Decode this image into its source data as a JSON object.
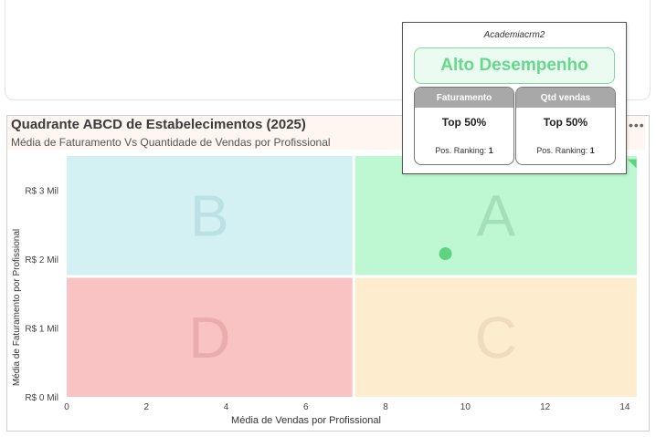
{
  "header": {
    "title": "Quadrante ABCD de Estabelecimentos (2025)",
    "subtitle": "Média de Faturamento Vs Quantidade de Vendas por Profissional",
    "more_icon": "ellipsis-icon"
  },
  "tooltip": {
    "name": "Academiacrm2",
    "performance": "Alto Desempenho",
    "cards": [
      {
        "header": "Faturamento",
        "top": "Top 50%",
        "rank_label": "Pos. Ranking:",
        "rank_value": "1"
      },
      {
        "header": "Qtd vendas",
        "top": "Top 50%",
        "rank_label": "Pos. Ranking:",
        "rank_value": "1"
      }
    ]
  },
  "chart_data": {
    "type": "scatter",
    "title": "Quadrante ABCD de Estabelecimentos (2025)",
    "subtitle": "Média de Faturamento Vs Quantidade de Vendas por Profissional",
    "xlabel": "Média de Vendas por Profissional",
    "ylabel": "Média de Faturamento por Profissional",
    "xlim": [
      0,
      14.3
    ],
    "ylim": [
      0,
      3500
    ],
    "x_ticks": [
      0,
      2,
      4,
      6,
      8,
      10,
      12,
      14
    ],
    "y_ticks": [
      {
        "value": 0,
        "label": "R$ 0 Mil"
      },
      {
        "value": 1000,
        "label": "R$ 1 Mil"
      },
      {
        "value": 2000,
        "label": "R$ 2 Mil"
      },
      {
        "value": 3000,
        "label": "R$ 3 Mil"
      }
    ],
    "x_split": 7.2,
    "y_split": 1750,
    "quadrants": [
      {
        "label": "A",
        "position": "top-right",
        "color": "#bdf8d2",
        "letter_color": "#a3e0b8"
      },
      {
        "label": "B",
        "position": "top-left",
        "color": "#d3f1f2",
        "letter_color": "#bde0e4"
      },
      {
        "label": "C",
        "position": "bottom-right",
        "color": "#feeccf",
        "letter_color": "#f0dcbc"
      },
      {
        "label": "D",
        "position": "bottom-left",
        "color": "#f8c3c2",
        "letter_color": "#e8adac"
      }
    ],
    "points": [
      {
        "x": 9.5,
        "y": 2080,
        "color": "#5fd382"
      },
      {
        "x": 14.2,
        "y": 3400,
        "color": "#5fd382",
        "marker": "triangle"
      }
    ],
    "grid": false
  }
}
